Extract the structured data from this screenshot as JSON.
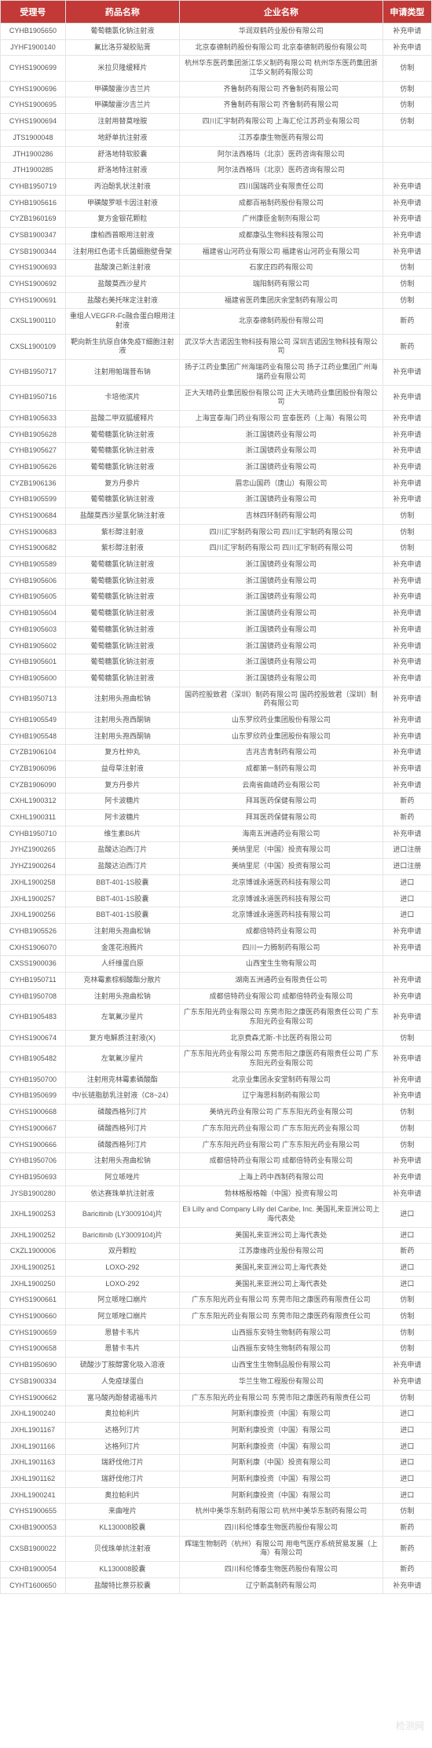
{
  "headers": {
    "col1": "受理号",
    "col2": "药品名称",
    "col3": "企业名称",
    "col4": "申请类型"
  },
  "colors": {
    "header_bg": "#c23937",
    "header_text": "#ffffff",
    "border": "#e5e5e5",
    "text": "#555555"
  },
  "rows": [
    {
      "id": "CYHB1905650",
      "drug": "葡萄糖氯化钠注射液",
      "company": "华润双鹤药业股份有限公司",
      "type": "补充申请"
    },
    {
      "id": "JYHF1900140",
      "drug": "氟比洛芬凝胶贴膏",
      "company": "北京泰德制药股份有限公司 北京泰德制药股份有限公司",
      "type": "补充申请"
    },
    {
      "id": "CYHS1900699",
      "drug": "米拉贝隆缓释片",
      "company": "杭州华东医药集团浙江华义制药有限公司 杭州华东医药集团浙江华义制药有限公司",
      "type": "仿制"
    },
    {
      "id": "CYHS1900696",
      "drug": "甲磺酸雷沙吉兰片",
      "company": "齐鲁制药有限公司 齐鲁制药有限公司",
      "type": "仿制"
    },
    {
      "id": "CYHS1900695",
      "drug": "甲磺酸雷沙吉兰片",
      "company": "齐鲁制药有限公司 齐鲁制药有限公司",
      "type": "仿制"
    },
    {
      "id": "CYHS1900694",
      "drug": "注射用替莫唑胺",
      "company": "四川汇宇制药有限公司 上海汇伦江苏药业有限公司",
      "type": "仿制"
    },
    {
      "id": "JTS1900048",
      "drug": "地舒单抗注射液",
      "company": "江苏泰康生物医药有限公司",
      "type": ""
    },
    {
      "id": "JTH1900286",
      "drug": "舒洛地特软胶囊",
      "company": "阿尔法西格玛（北京）医药咨询有限公司",
      "type": ""
    },
    {
      "id": "JTH1900285",
      "drug": "舒洛地特注射液",
      "company": "阿尔法西格玛（北京）医药咨询有限公司",
      "type": ""
    },
    {
      "id": "CYHB1950719",
      "drug": "丙泊酚乳状注射液",
      "company": "四川国瑞药业有限责任公司",
      "type": "补充申请"
    },
    {
      "id": "CYHB1905616",
      "drug": "甲磺酸罗哌卡因注射液",
      "company": "成都百裕制药股份有限公司",
      "type": "补充申请"
    },
    {
      "id": "CYZB1960169",
      "drug": "复方金银花颗粒",
      "company": "广州康臣金制剂有限公司",
      "type": "补充申请"
    },
    {
      "id": "CYSB1900347",
      "drug": "康柏西普眼用注射液",
      "company": "成都康弘生物科技有限公司",
      "type": "补充申请"
    },
    {
      "id": "CYSB1900344",
      "drug": "注射用红色诺卡氏菌细胞壁骨架",
      "company": "福建省山河药业有限公司 福建省山河药业有限公司",
      "type": "补充申请"
    },
    {
      "id": "CYHS1900693",
      "drug": "盐酸溴己新注射液",
      "company": "石家庄四药有限公司",
      "type": "仿制"
    },
    {
      "id": "CYHS1900692",
      "drug": "盐酸莫西沙星片",
      "company": "瑞阳制药有限公司",
      "type": "仿制"
    },
    {
      "id": "CYHS1900691",
      "drug": "盐酸右美托咪定注射液",
      "company": "福建省医药集团庆余堂制药有限公司",
      "type": "仿制"
    },
    {
      "id": "CXSL1900110",
      "drug": "重组人VEGFR-Fc融合蛋白眼用注射液",
      "company": "北京泰德制药股份有限公司",
      "type": "新药"
    },
    {
      "id": "CXSL1900109",
      "drug": "靶向新生抗原自体免疫T细胞注射液",
      "company": "武汉华大吉诺因生物科技有限公司 深圳吉诺因生物科技有限公司",
      "type": "新药"
    },
    {
      "id": "CYHB1950717",
      "drug": "注射用帕瑞昔布钠",
      "company": "扬子江药业集团广州海瑞药业有限公司 扬子江药业集团广州海瑞药业有限公司",
      "type": "补充申请"
    },
    {
      "id": "CYHB1950716",
      "drug": "卡培他滨片",
      "company": "正大天晴药业集团股份有限公司 正大天晴药业集团股份有限公司",
      "type": "补充申请"
    },
    {
      "id": "CYHB1905633",
      "drug": "盐酸二甲双胍缓释片",
      "company": "上海宣泰海门药业有限公司 宣泰医药（上海）有限公司",
      "type": "补充申请"
    },
    {
      "id": "CYHB1905628",
      "drug": "葡萄糖氯化钠注射液",
      "company": "浙江国镜药业有限公司",
      "type": "补充申请"
    },
    {
      "id": "CYHB1905627",
      "drug": "葡萄糖氯化钠注射液",
      "company": "浙江国镜药业有限公司",
      "type": "补充申请"
    },
    {
      "id": "CYHB1905626",
      "drug": "葡萄糖氯化钠注射液",
      "company": "浙江国镜药业有限公司",
      "type": "补充申请"
    },
    {
      "id": "CYZB1906136",
      "drug": "复方丹参片",
      "company": "眉忠山国药（唐山）有限公司",
      "type": "补充申请"
    },
    {
      "id": "CYHB1905599",
      "drug": "葡萄糖氯化钠注射液",
      "company": "浙江国镜药业有限公司",
      "type": "补充申请"
    },
    {
      "id": "CYHS1900684",
      "drug": "盐酸莫西沙星氯化钠注射液",
      "company": "吉林四环制药有限公司",
      "type": "仿制"
    },
    {
      "id": "CYHS1900683",
      "drug": "紫杉醇注射液",
      "company": "四川汇宇制药有限公司 四川汇宇制药有限公司",
      "type": "仿制"
    },
    {
      "id": "CYHS1900682",
      "drug": "紫杉醇注射液",
      "company": "四川汇宇制药有限公司 四川汇宇制药有限公司",
      "type": "仿制"
    },
    {
      "id": "CYHB1905589",
      "drug": "葡萄糖氯化钠注射液",
      "company": "浙江国镜药业有限公司",
      "type": "补充申请"
    },
    {
      "id": "CYHB1905606",
      "drug": "葡萄糖氯化钠注射液",
      "company": "浙江国镜药业有限公司",
      "type": "补充申请"
    },
    {
      "id": "CYHB1905605",
      "drug": "葡萄糖氯化钠注射液",
      "company": "浙江国镜药业有限公司",
      "type": "补充申请"
    },
    {
      "id": "CYHB1905604",
      "drug": "葡萄糖氯化钠注射液",
      "company": "浙江国镜药业有限公司",
      "type": "补充申请"
    },
    {
      "id": "CYHB1905603",
      "drug": "葡萄糖氯化钠注射液",
      "company": "浙江国镜药业有限公司",
      "type": "补充申请"
    },
    {
      "id": "CYHB1905602",
      "drug": "葡萄糖氯化钠注射液",
      "company": "浙江国镜药业有限公司",
      "type": "补充申请"
    },
    {
      "id": "CYHB1905601",
      "drug": "葡萄糖氯化钠注射液",
      "company": "浙江国镜药业有限公司",
      "type": "补充申请"
    },
    {
      "id": "CYHB1905600",
      "drug": "葡萄糖氯化钠注射液",
      "company": "浙江国镜药业有限公司",
      "type": "补充申请"
    },
    {
      "id": "CYHB1950713",
      "drug": "注射用头孢曲松钠",
      "company": "国药控股致君（深圳）制药有限公司 国药控股致君（深圳）制药有限公司",
      "type": "补充申请"
    },
    {
      "id": "CYHB1905549",
      "drug": "注射用头孢西酮钠",
      "company": "山东罗欣药业集团股份有限公司",
      "type": "补充申请"
    },
    {
      "id": "CYHB1905548",
      "drug": "注射用头孢西酮钠",
      "company": "山东罗欣药业集团股份有限公司",
      "type": "补充申请"
    },
    {
      "id": "CYZB1906104",
      "drug": "复方杜仲丸",
      "company": "吉兆吉青制药有限公司",
      "type": "补充申请"
    },
    {
      "id": "CYZB1906096",
      "drug": "益母草注射液",
      "company": "成都第一制药有限公司",
      "type": "补充申请"
    },
    {
      "id": "CYZB1906090",
      "drug": "复方丹参片",
      "company": "云南省曲靖药业有限公司",
      "type": "补充申请"
    },
    {
      "id": "CXHL1900312",
      "drug": "阿卡波糖片",
      "company": "拜耳医药保健有限公司",
      "type": "新药"
    },
    {
      "id": "CXHL1900311",
      "drug": "阿卡波糖片",
      "company": "拜耳医药保健有限公司",
      "type": "新药"
    },
    {
      "id": "CYHB1950710",
      "drug": "维生素B6片",
      "company": "海南五洲通药业有限公司",
      "type": "补充申请"
    },
    {
      "id": "JYHZ1900265",
      "drug": "盐酸达泊西汀片",
      "company": "美纳里尼（中国）投资有限公司",
      "type": "进口注册"
    },
    {
      "id": "JYHZ1900264",
      "drug": "盐酸达泊西汀片",
      "company": "美纳里尼（中国）投资有限公司",
      "type": "进口注册"
    },
    {
      "id": "JXHL1900258",
      "drug": "BBT-401-1S胶囊",
      "company": "北京博诚永道医药科技有限公司",
      "type": "进口"
    },
    {
      "id": "JXHL1900257",
      "drug": "BBT-401-1S胶囊",
      "company": "北京博诚永道医药科技有限公司",
      "type": "进口"
    },
    {
      "id": "JXHL1900256",
      "drug": "BBT-401-1S胶囊",
      "company": "北京博诚永道医药科技有限公司",
      "type": "进口"
    },
    {
      "id": "CYHB1905526",
      "drug": "注射用头孢曲松钠",
      "company": "成都倍特药业有限公司",
      "type": "补充申请"
    },
    {
      "id": "CXHS1906070",
      "drug": "金莲花泡腾片",
      "company": "四川一力腾制药有限公司",
      "type": "补充申请"
    },
    {
      "id": "CXSS1900036",
      "drug": "人纤维蛋白原",
      "company": "山西宝生生物有限公司",
      "type": ""
    },
    {
      "id": "CYHB1950711",
      "drug": "克林霉素棕榈酸酯分散片",
      "company": "湖南五洲通药业有限责任公司",
      "type": "补充申请"
    },
    {
      "id": "CYHB1950708",
      "drug": "注射用头孢曲松钠",
      "company": "成都倍特药业有限公司 成都倍特药业有限公司",
      "type": "补充申请"
    },
    {
      "id": "CYHB1905483",
      "drug": "左氧氟沙星片",
      "company": "广东东阳光药业有限公司 东莞市阳之康医药有限责任公司 广东东阳光药业有限公司",
      "type": "补充申请"
    },
    {
      "id": "CYHS1900674",
      "drug": "复方电解质注射液(Ⅹ)",
      "company": "北京费森尤斯-卡比医药有限公司",
      "type": "仿制"
    },
    {
      "id": "CYHB1905482",
      "drug": "左氧氟沙星片",
      "company": "广东东阳光药业有限公司 东莞市阳之康医药有限责任公司 广东东阳光药业有限公司",
      "type": "补充申请"
    },
    {
      "id": "CYHB1950700",
      "drug": "注射用克林霉素磷酸酯",
      "company": "北京业集团永安堂制药有限公司",
      "type": "补充申请"
    },
    {
      "id": "CYHB1950699",
      "drug": "中/长链脂肪乳注射液（C8~24）",
      "company": "辽宁海思科制药有限公司",
      "type": "补充申请"
    },
    {
      "id": "CYHS1900668",
      "drug": "磷酸西格列汀片",
      "company": "美纳光药业有限公司 广东东阳光药业有限公司",
      "type": "仿制"
    },
    {
      "id": "CYHS1900667",
      "drug": "磷酸西格列汀片",
      "company": "广东东阳光药业有限公司 广东东阳光药业有限公司",
      "type": "仿制"
    },
    {
      "id": "CYHS1900666",
      "drug": "磷酸西格列汀片",
      "company": "广东东阳光药业有限公司 广东东阳光药业有限公司",
      "type": "仿制"
    },
    {
      "id": "CYHB1950706",
      "drug": "注射用头孢曲松钠",
      "company": "成都倍特药业有限公司 成都倍特药业有限公司",
      "type": "补充申请"
    },
    {
      "id": "CYHB1950693",
      "drug": "阿立哌唑片",
      "company": "上海上药中西制药有限公司",
      "type": "补充申请"
    },
    {
      "id": "JYSB1900280",
      "drug": "依达赛珠单抗注射液",
      "company": "勃林格殷格翰（中国）投资有限公司",
      "type": "补充申请"
    },
    {
      "id": "JXHL1900253",
      "drug": "Baricitinib (LY3009104)片",
      "company": "Eli Lilly and Company Lilly del Caribe, Inc. 美国礼来亚洲公司上海代表处",
      "type": "进口"
    },
    {
      "id": "JXHL1900252",
      "drug": "Baricitinib (LY3009104)片",
      "company": "美国礼来亚洲公司上海代表处",
      "type": "进口"
    },
    {
      "id": "CXZL1900006",
      "drug": "双丹颗粒",
      "company": "江苏康缘药业股份有限公司",
      "type": "新药"
    },
    {
      "id": "JXHL1900251",
      "drug": "LOXO-292",
      "company": "美国礼来亚洲公司上海代表处",
      "type": "进口"
    },
    {
      "id": "JXHL1900250",
      "drug": "LOXO-292",
      "company": "美国礼来亚洲公司上海代表处",
      "type": "进口"
    },
    {
      "id": "CYHS1900661",
      "drug": "阿立哌唑口崩片",
      "company": "广东东阳光药业有限公司 东莞市阳之康医药有限责任公司",
      "type": "仿制"
    },
    {
      "id": "CYHS1900660",
      "drug": "阿立哌唑口崩片",
      "company": "广东东阳光药业有限公司 东莞市阳之康医药有限责任公司",
      "type": "仿制"
    },
    {
      "id": "CYHS1900659",
      "drug": "恩替卡韦片",
      "company": "山西振东安特生物制药有限公司",
      "type": "仿制"
    },
    {
      "id": "CYHS1900658",
      "drug": "恩替卡韦片",
      "company": "山西振东安特生物制药有限公司",
      "type": "仿制"
    },
    {
      "id": "CYHB1950690",
      "drug": "硫酸沙丁胺醇雾化吸入溶液",
      "company": "山西宝生生物制品股份有限公司",
      "type": "补充申请"
    },
    {
      "id": "CYSB1900334",
      "drug": "人免疫球蛋白",
      "company": "华兰生物工程股份有限公司",
      "type": "补充申请"
    },
    {
      "id": "CYHS1900662",
      "drug": "富马酸丙酚替诺福韦片",
      "company": "广东东阳光药业有限公司 东莞市阳之康医药有限责任公司",
      "type": "仿制"
    },
    {
      "id": "JXHL1900240",
      "drug": "奥拉帕利片",
      "company": "阿斯利康投资（中国）有限公司",
      "type": "进口"
    },
    {
      "id": "JXHL1901167",
      "drug": "达格列汀片",
      "company": "阿斯利康投资（中国）有限公司",
      "type": "进口"
    },
    {
      "id": "JXHL1901166",
      "drug": "达格列汀片",
      "company": "阿斯利康投资（中国）有限公司",
      "type": "进口"
    },
    {
      "id": "JXHL1901163",
      "drug": "瑞舒伐他汀片",
      "company": "阿斯利康（中国）投资有限公司",
      "type": "进口"
    },
    {
      "id": "JXHL1901162",
      "drug": "瑞舒伐他汀片",
      "company": "阿斯利康投资（中国）有限公司",
      "type": "进口"
    },
    {
      "id": "JXHL1900241",
      "drug": "奥拉帕利片",
      "company": "阿斯利康投资（中国）有限公司",
      "type": "进口"
    },
    {
      "id": "CYHS1900655",
      "drug": "来曲唑片",
      "company": "杭州中美华东制药有限公司 杭州中美华东制药有限公司",
      "type": "仿制"
    },
    {
      "id": "CXHB1900053",
      "drug": "KL130008胶囊",
      "company": "四川科伦博泰生物医药股份有限公司",
      "type": "新药"
    },
    {
      "id": "CXSB1900022",
      "drug": "贝伐珠单抗注射液",
      "company": "辉瑞生物制药（杭州）有限公司 用电气医疗系统贸易发展（上海）有限公司",
      "type": "新药"
    },
    {
      "id": "CXHB1900054",
      "drug": "KL130008胶囊",
      "company": "四川科伦博泰生物医药股份有限公司",
      "type": "新药"
    },
    {
      "id": "CYHT1600650",
      "drug": "盐酸特比萘芬胶囊",
      "company": "辽宁新高制药有限公司",
      "type": "补充申请"
    }
  ],
  "watermark": "检测网"
}
